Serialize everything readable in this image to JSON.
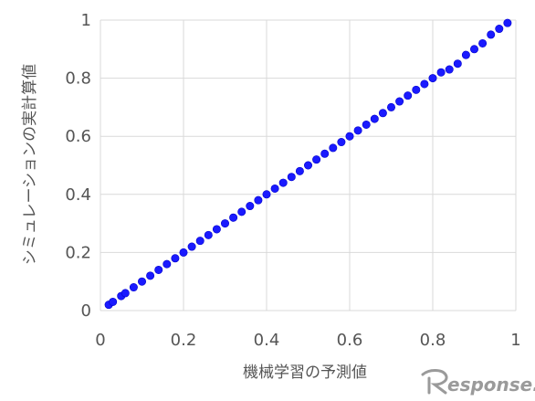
{
  "chart_data": {
    "type": "scatter",
    "title": "",
    "xlabel": "機械学習の予測値",
    "ylabel": "シミュレーションの実計算値",
    "xlim": [
      0,
      1
    ],
    "ylim": [
      0,
      1
    ],
    "grid": true,
    "legend": "none",
    "x_ticks": [
      "0",
      "0.2",
      "0.4",
      "0.6",
      "0.8",
      "1"
    ],
    "y_ticks": [
      "0",
      "0.2",
      "0.4",
      "0.6",
      "0.8",
      "1"
    ],
    "series": [
      {
        "color": "#1a1aff",
        "x": [
          0.02,
          0.03,
          0.05,
          0.06,
          0.08,
          0.1,
          0.12,
          0.14,
          0.16,
          0.18,
          0.2,
          0.22,
          0.24,
          0.26,
          0.28,
          0.3,
          0.32,
          0.34,
          0.36,
          0.38,
          0.4,
          0.42,
          0.44,
          0.46,
          0.48,
          0.5,
          0.52,
          0.54,
          0.56,
          0.58,
          0.6,
          0.62,
          0.64,
          0.66,
          0.68,
          0.7,
          0.72,
          0.74,
          0.76,
          0.78,
          0.8,
          0.82,
          0.84,
          0.86,
          0.88,
          0.9,
          0.92,
          0.94,
          0.96,
          0.98
        ],
        "y": [
          0.02,
          0.03,
          0.05,
          0.06,
          0.08,
          0.1,
          0.12,
          0.14,
          0.16,
          0.18,
          0.2,
          0.22,
          0.24,
          0.26,
          0.28,
          0.3,
          0.32,
          0.34,
          0.36,
          0.38,
          0.4,
          0.42,
          0.44,
          0.46,
          0.48,
          0.5,
          0.52,
          0.54,
          0.56,
          0.58,
          0.6,
          0.62,
          0.64,
          0.66,
          0.68,
          0.7,
          0.72,
          0.74,
          0.76,
          0.78,
          0.8,
          0.82,
          0.83,
          0.85,
          0.88,
          0.9,
          0.92,
          0.95,
          0.97,
          0.99
        ]
      }
    ]
  },
  "watermark": {
    "text": "esponse."
  }
}
